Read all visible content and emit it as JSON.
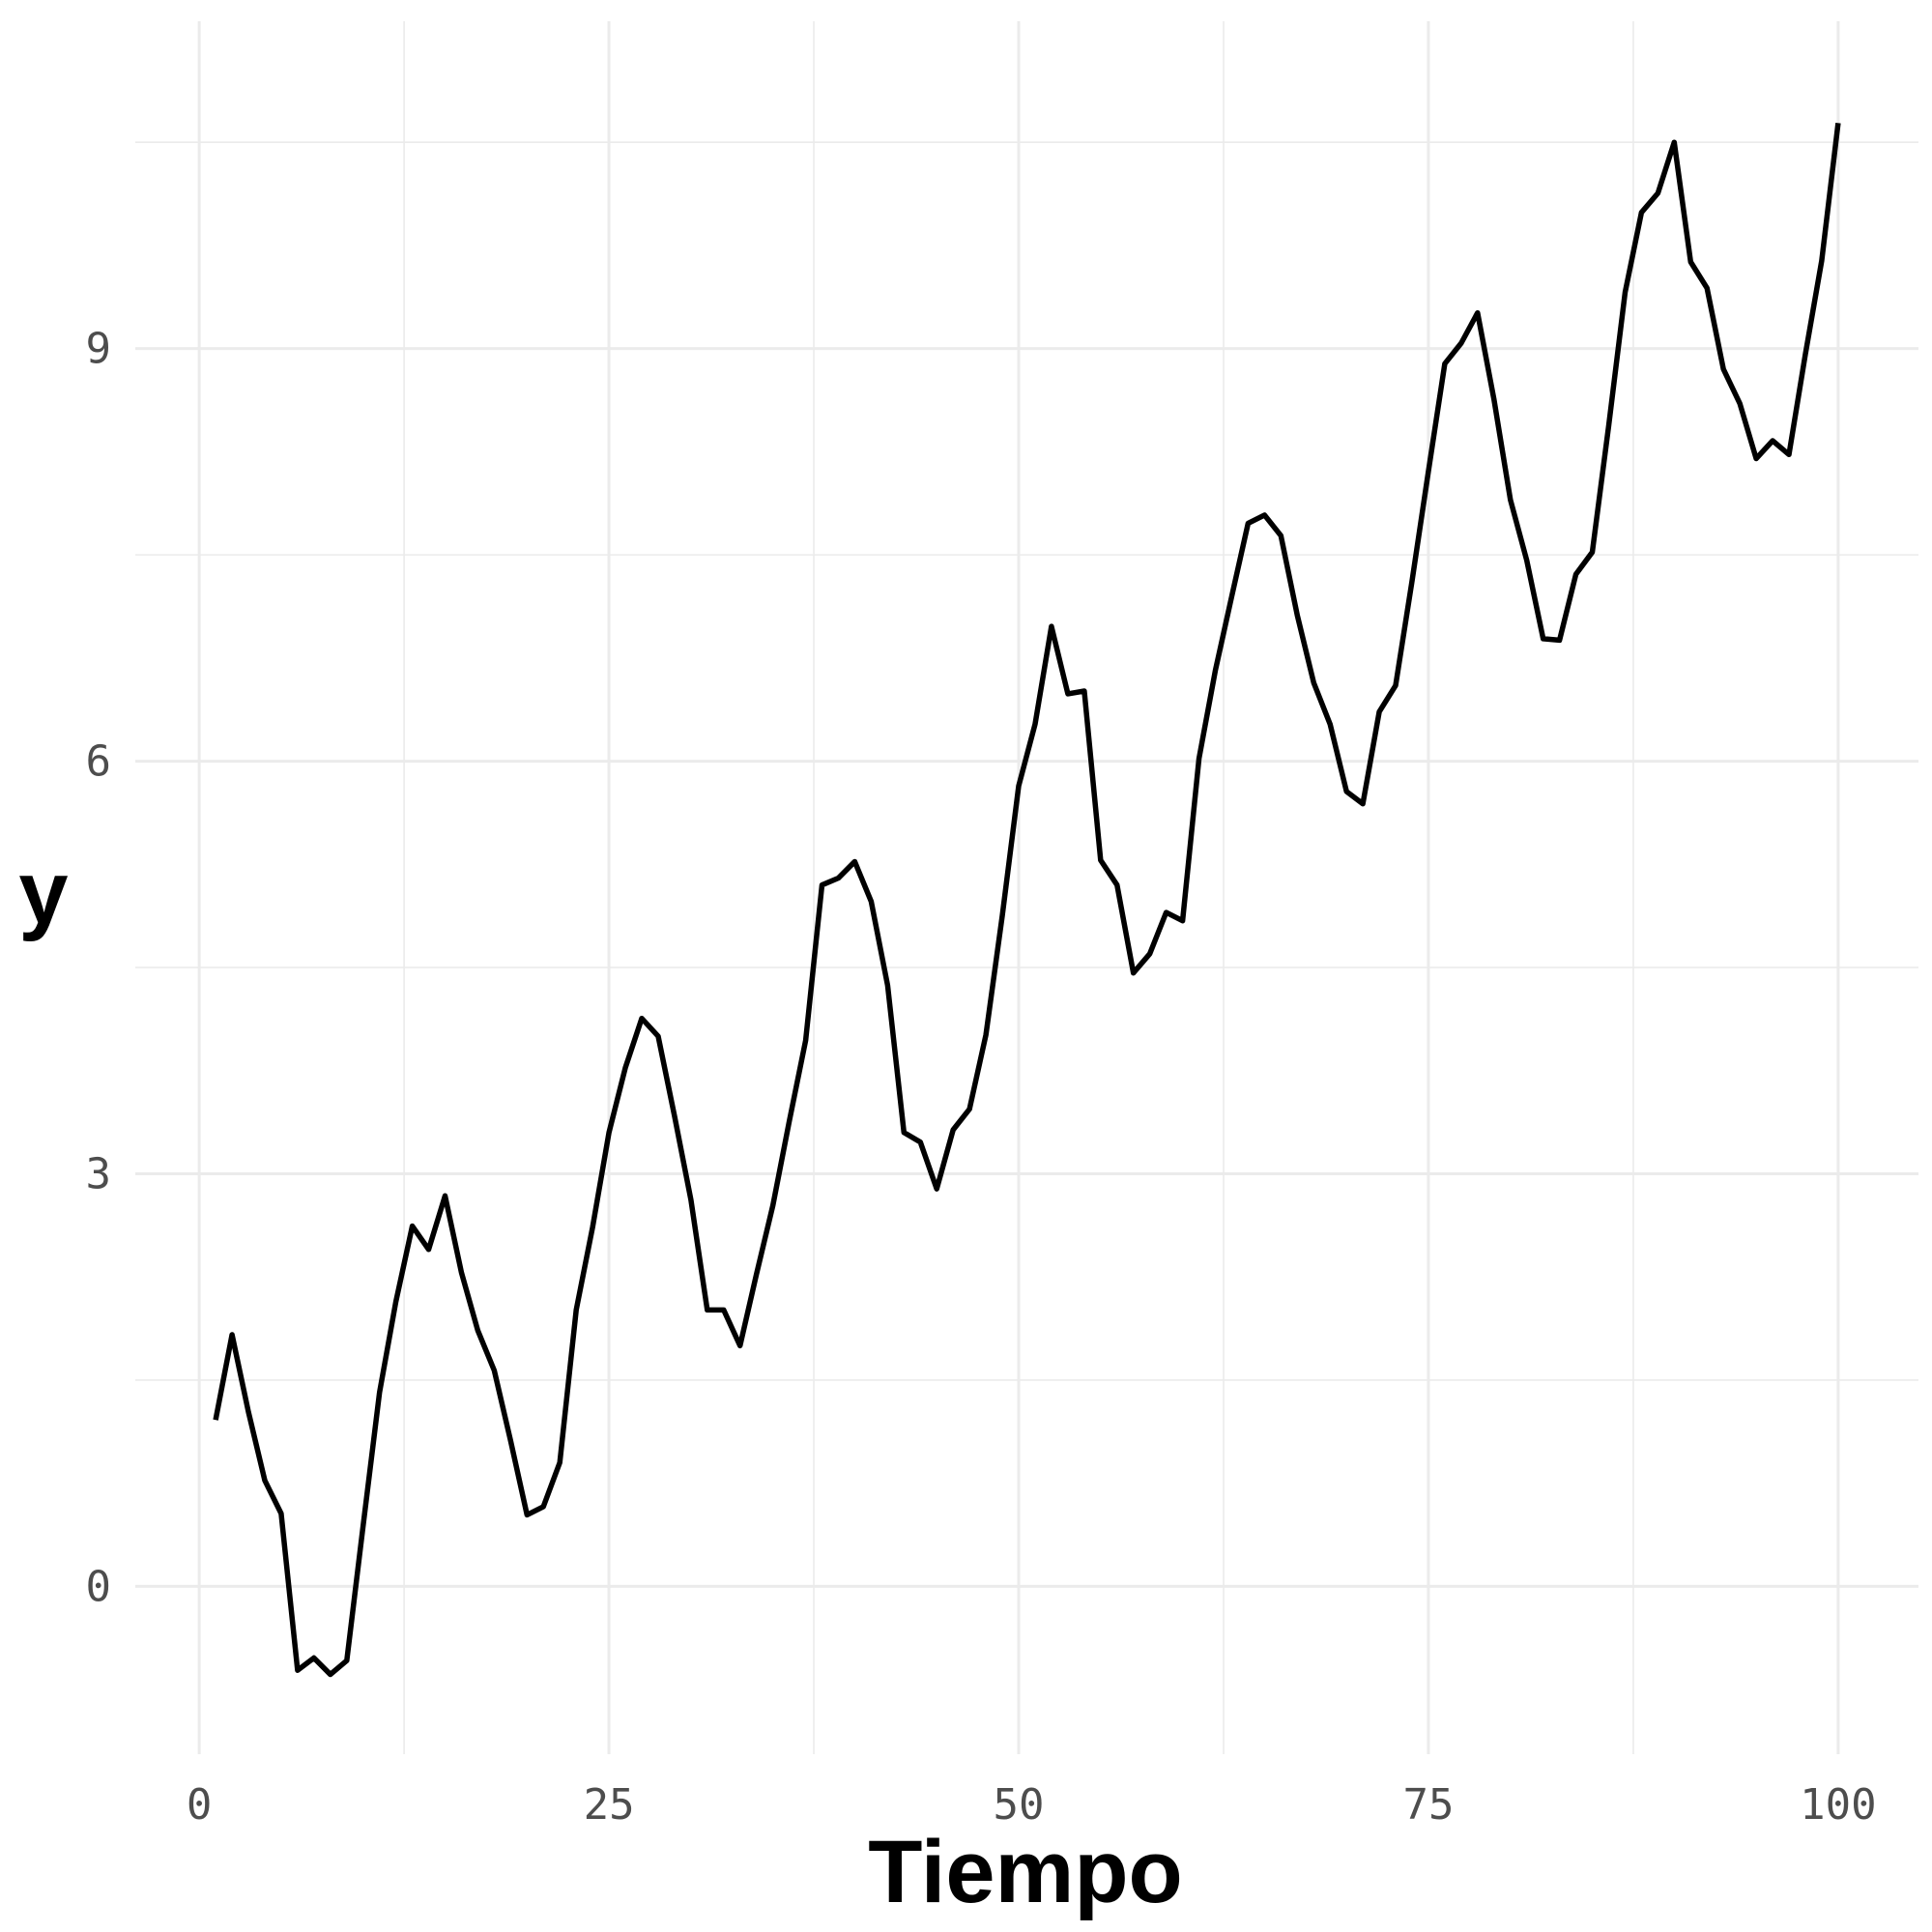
{
  "chart_data": {
    "type": "line",
    "title": "",
    "xlabel": "Tiempo",
    "ylabel": "y",
    "xlim": [
      -3.9,
      104.9
    ],
    "ylim": [
      -1.22,
      11.38
    ],
    "x_ticks": [
      0,
      25,
      50,
      75,
      100
    ],
    "x_tick_labels": [
      "0",
      "25",
      "50",
      "75",
      "100"
    ],
    "y_ticks": [
      0,
      3,
      6,
      9
    ],
    "y_tick_labels": [
      "0",
      "3",
      "6",
      "9"
    ],
    "grid": true,
    "legend": "none",
    "line_color": "#000000",
    "series": [
      {
        "x": [
          1,
          2,
          3,
          4,
          5,
          6,
          7,
          8,
          9,
          10,
          11,
          12,
          13,
          14,
          15,
          16,
          17,
          18,
          19,
          20,
          21,
          22,
          23,
          24,
          25,
          26,
          27,
          28,
          29,
          30,
          31,
          32,
          33,
          34,
          35,
          36,
          37,
          38,
          39,
          40,
          41,
          42,
          43,
          44,
          45,
          46,
          47,
          48,
          49,
          50,
          51,
          52,
          53,
          54,
          55,
          56,
          57,
          58,
          59,
          60,
          61,
          62,
          63,
          64,
          65,
          66,
          67,
          68,
          69,
          70,
          71,
          72,
          73,
          74,
          75,
          76,
          77,
          78,
          79,
          80,
          81,
          82,
          83,
          84,
          85,
          86,
          87,
          88,
          89,
          90,
          91,
          92,
          93,
          94,
          95,
          96,
          97,
          98,
          99,
          100
        ],
        "values": [
          1.21,
          1.83,
          1.27,
          0.77,
          0.53,
          -0.61,
          -0.52,
          -0.64,
          -0.54,
          0.44,
          1.41,
          2.07,
          2.62,
          2.45,
          2.84,
          2.28,
          1.86,
          1.57,
          1.06,
          0.52,
          0.58,
          0.9,
          2.01,
          2.61,
          3.3,
          3.77,
          4.13,
          4.0,
          3.42,
          2.81,
          2.01,
          2.01,
          1.75,
          2.27,
          2.77,
          3.38,
          3.97,
          5.1,
          5.15,
          5.27,
          4.98,
          4.37,
          3.3,
          3.23,
          2.89,
          3.32,
          3.47,
          4.01,
          4.88,
          5.82,
          6.27,
          6.98,
          6.49,
          6.51,
          5.28,
          5.1,
          4.46,
          4.6,
          4.9,
          4.84,
          6.02,
          6.66,
          7.2,
          7.73,
          7.79,
          7.64,
          7.06,
          6.57,
          6.27,
          5.78,
          5.69,
          6.36,
          6.55,
          7.31,
          8.11,
          8.89,
          9.04,
          9.26,
          8.63,
          7.9,
          7.46,
          6.89,
          6.88,
          7.36,
          7.52,
          8.44,
          9.41,
          9.99,
          10.13,
          10.5,
          9.63,
          9.44,
          8.85,
          8.6,
          8.2,
          8.33,
          8.23,
          8.96,
          9.64,
          10.64
        ]
      }
    ]
  }
}
